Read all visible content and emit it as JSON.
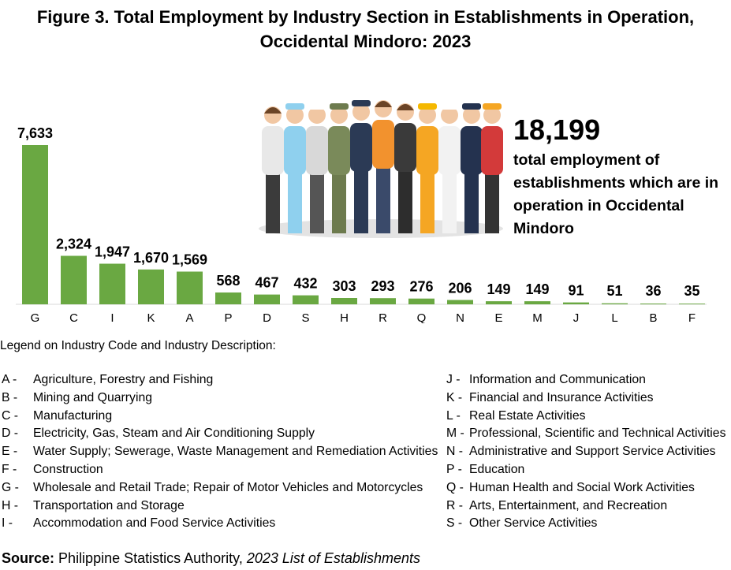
{
  "title": "Figure 3. Total Employment by Industry Section in Establishments in Operation, Occidental Mindoro: 2023",
  "headline": {
    "value": "18,199",
    "text": "total employment of establishments which are in operation in Occidental Mindoro"
  },
  "chart_data": {
    "type": "bar",
    "title": "Figure 3. Total Employment by Industry Section in Establishments in Operation, Occidental Mindoro: 2023",
    "categories": [
      "G",
      "C",
      "I",
      "K",
      "A",
      "P",
      "D",
      "S",
      "H",
      "R",
      "Q",
      "N",
      "E",
      "M",
      "J",
      "L",
      "B",
      "F"
    ],
    "values": [
      7633,
      2324,
      1947,
      1670,
      1569,
      568,
      467,
      432,
      303,
      293,
      276,
      206,
      149,
      149,
      91,
      51,
      36,
      35
    ],
    "value_labels": [
      "7,633",
      "2,324",
      "1,947",
      "1,670",
      "1,569",
      "568",
      "467",
      "432",
      "303",
      "293",
      "276",
      "206",
      "149",
      "149",
      "91",
      "51",
      "36",
      "35"
    ],
    "xlabel": "",
    "ylabel": "",
    "ylim": [
      0,
      7633
    ],
    "grid": false,
    "bar_color": "#6aa842"
  },
  "legend": {
    "title": "Legend on Industry Code and Industry Description:",
    "left": [
      {
        "code": "A -",
        "desc": "Agriculture, Forestry and Fishing"
      },
      {
        "code": "B -",
        "desc": "Mining and Quarrying"
      },
      {
        "code": "C -",
        "desc": "Manufacturing"
      },
      {
        "code": "D -",
        "desc": "Electricity, Gas, Steam and Air Conditioning Supply"
      },
      {
        "code": "E -",
        "desc": "Water Supply; Sewerage, Waste Management and Remediation Activities"
      },
      {
        "code": "F -",
        "desc": "Construction"
      },
      {
        "code": "G -",
        "desc": "Wholesale and Retail Trade; Repair of Motor Vehicles and Motorcycles"
      },
      {
        "code": "H -",
        "desc": "Transportation and Storage"
      },
      {
        "code": "I -",
        "desc": "Accommodation and Food Service Activities"
      }
    ],
    "right": [
      {
        "code": "J -",
        "desc": "Information and Communication"
      },
      {
        "code": "K -",
        "desc": "Financial and Insurance Activities"
      },
      {
        "code": "L -",
        "desc": "Real Estate Activities"
      },
      {
        "code": "M -",
        "desc": "Professional, Scientific and Technical Activities"
      },
      {
        "code": "N -",
        "desc": "Administrative and Support Service Activities"
      },
      {
        "code": "P -",
        "desc": "Education"
      },
      {
        "code": "Q -",
        "desc": "Human Health and Social Work Activities"
      },
      {
        "code": "R -",
        "desc": "Arts, Entertainment, and Recreation"
      },
      {
        "code": "S -",
        "desc": "Other Service Activities"
      }
    ]
  },
  "source": {
    "label": "Source:",
    "text": "Philippine Statistics Authority,",
    "publication": "2023 List of Establishments"
  }
}
